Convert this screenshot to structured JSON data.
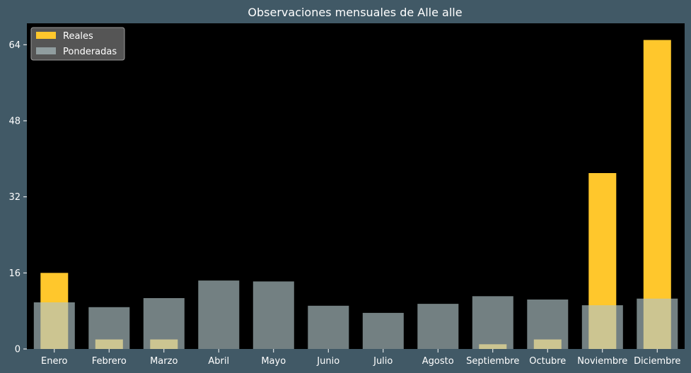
{
  "chart_data": {
    "type": "bar",
    "title": "Observaciones mensuales de Alle alle",
    "categories": [
      "Enero",
      "Febrero",
      "Marzo",
      "Abril",
      "Mayo",
      "Junio",
      "Julio",
      "Agosto",
      "Septiembre",
      "Octubre",
      "Noviembre",
      "Diciembre"
    ],
    "series": [
      {
        "name": "Reales",
        "values": [
          16,
          2,
          2,
          0,
          0,
          0,
          0,
          0,
          1,
          2,
          37,
          65
        ],
        "color": "#ffc72c"
      },
      {
        "name": "Ponderadas",
        "values": [
          9.8,
          8.8,
          10.7,
          14.4,
          14.2,
          9.1,
          7.6,
          9.5,
          11.1,
          10.4,
          9.2,
          10.6
        ],
        "color": "#b0c4c8"
      }
    ],
    "yticks": [
      0,
      16,
      32,
      48,
      64
    ],
    "ylim": [
      0,
      68.5
    ],
    "legend_position": "top-left",
    "colors": {
      "background": "#415966",
      "plot_background": "#000000",
      "text": "#ffffff"
    }
  }
}
